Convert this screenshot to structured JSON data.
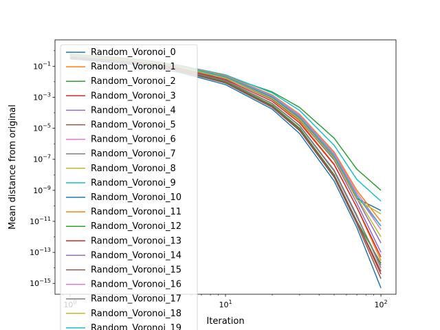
{
  "chart_data": {
    "type": "line",
    "title": "",
    "xlabel": "Iteration",
    "ylabel": "Mean distance from original",
    "xscale": "log",
    "yscale": "log",
    "xlim": [
      0.8,
      125
    ],
    "ylim": [
      2e-16,
      5
    ],
    "x_ticks": [
      {
        "base": "10",
        "exp": "0",
        "value": 1
      },
      {
        "base": "10",
        "exp": "1",
        "value": 10
      },
      {
        "base": "10",
        "exp": "2",
        "value": 100
      }
    ],
    "y_ticks": [
      {
        "base": "10",
        "exp": "−1",
        "value": 0.1
      },
      {
        "base": "10",
        "exp": "−3",
        "value": 0.001
      },
      {
        "base": "10",
        "exp": "−5",
        "value": 1e-05
      },
      {
        "base": "10",
        "exp": "−7",
        "value": 1e-07
      },
      {
        "base": "10",
        "exp": "−9",
        "value": 1e-09
      },
      {
        "base": "10",
        "exp": "−11",
        "value": 1e-11
      },
      {
        "base": "10",
        "exp": "−13",
        "value": 1e-13
      },
      {
        "base": "10",
        "exp": "−15",
        "value": 1e-15
      }
    ],
    "legend_position": "upper-left",
    "palette": [
      "#1f77b4",
      "#ff7f0e",
      "#2ca02c",
      "#d62728",
      "#9467bd",
      "#8c564b",
      "#e377c2",
      "#7f7f7f",
      "#bcbd22",
      "#17becf"
    ],
    "x": [
      1,
      2,
      3,
      5,
      10,
      20,
      30,
      50,
      70,
      100
    ],
    "series": [
      {
        "name": "Random_Voronoi_0",
        "values": [
          0.3,
          0.17,
          0.105,
          0.042,
          0.0065,
          0.00017,
          4.5e-06,
          4e-09,
          4e-12,
          5e-16
        ]
      },
      {
        "name": "Random_Voronoi_1",
        "values": [
          0.58,
          0.34,
          0.22,
          0.096,
          0.018,
          0.0007,
          2.8e-05,
          5e-08,
          8e-11,
          3e-14
        ]
      },
      {
        "name": "Random_Voronoi_2",
        "values": [
          0.45,
          0.28,
          0.19,
          0.095,
          0.024,
          0.0022,
          0.00022,
          2.3e-06,
          2.3e-08,
          1e-09
        ]
      },
      {
        "name": "Random_Voronoi_3",
        "values": [
          0.4,
          0.23,
          0.145,
          0.06,
          0.01,
          0.0003,
          1e-05,
          1e-08,
          1e-11,
          4e-15
        ]
      },
      {
        "name": "Random_Voronoi_4",
        "values": [
          0.5,
          0.3,
          0.2,
          0.09,
          0.018,
          0.0008,
          3.5e-05,
          9e-08,
          1.5e-10,
          1e-13
        ]
      },
      {
        "name": "Random_Voronoi_5",
        "values": [
          0.35,
          0.2,
          0.125,
          0.05,
          0.0082,
          0.00022,
          7e-06,
          7e-09,
          7e-12,
          2e-15
        ]
      },
      {
        "name": "Random_Voronoi_6",
        "values": [
          0.55,
          0.33,
          0.22,
          0.1,
          0.022,
          0.0012,
          6e-05,
          2e-07,
          5e-10,
          3e-12
        ]
      },
      {
        "name": "Random_Voronoi_7",
        "values": [
          0.42,
          0.25,
          0.16,
          0.068,
          0.012,
          0.0004,
          1.5e-05,
          2e-08,
          2.5e-11,
          1e-14
        ]
      },
      {
        "name": "Random_Voronoi_8",
        "values": [
          0.52,
          0.31,
          0.21,
          0.095,
          0.02,
          0.001,
          5e-05,
          1.5e-07,
          3.5e-10,
          1e-12
        ]
      },
      {
        "name": "Random_Voronoi_9",
        "values": [
          0.6,
          0.37,
          0.25,
          0.12,
          0.028,
          0.0019,
          0.00014,
          8e-07,
          5e-09,
          2e-10
        ]
      },
      {
        "name": "Random_Voronoi_10",
        "values": [
          0.48,
          0.29,
          0.19,
          0.085,
          0.017,
          0.00075,
          3.5e-05,
          1e-07,
          3e-10,
          5e-11
        ]
      },
      {
        "name": "Random_Voronoi_11",
        "values": [
          0.62,
          0.37,
          0.25,
          0.115,
          0.025,
          0.0014,
          8e-05,
          3e-07,
          1e-09,
          1e-11
        ]
      },
      {
        "name": "Random_Voronoi_12",
        "values": [
          0.38,
          0.22,
          0.14,
          0.057,
          0.0098,
          0.0003,
          1e-05,
          1e-08,
          1e-11,
          2e-14
        ]
      },
      {
        "name": "Random_Voronoi_13",
        "values": [
          0.44,
          0.26,
          0.17,
          0.074,
          0.014,
          0.00055,
          2.2e-05,
          4.5e-08,
          8e-11,
          5e-14
        ]
      },
      {
        "name": "Random_Voronoi_14",
        "values": [
          0.53,
          0.32,
          0.21,
          0.095,
          0.019,
          0.00095,
          4.5e-05,
          1.3e-07,
          3e-10,
          4e-13
        ]
      },
      {
        "name": "Random_Voronoi_15",
        "values": [
          0.36,
          0.21,
          0.13,
          0.053,
          0.009,
          0.00026,
          8.5e-06,
          9e-09,
          1e-11,
          6e-15
        ]
      },
      {
        "name": "Random_Voronoi_16",
        "values": [
          0.57,
          0.34,
          0.23,
          0.105,
          0.023,
          0.0013,
          7e-05,
          2.5e-07,
          7e-10,
          5e-12
        ]
      },
      {
        "name": "Random_Voronoi_17",
        "values": [
          0.41,
          0.24,
          0.155,
          0.065,
          0.0115,
          0.00038,
          1.4e-05,
          1.7e-08,
          2e-11,
          1.5e-14
        ]
      },
      {
        "name": "Random_Voronoi_18",
        "values": [
          0.49,
          0.29,
          0.195,
          0.088,
          0.0175,
          0.00082,
          3.8e-05,
          1.1e-07,
          2.5e-10,
          3e-11
        ]
      },
      {
        "name": "Random_Voronoi_19",
        "values": [
          0.56,
          0.34,
          0.225,
          0.102,
          0.022,
          0.0011,
          5.5e-05,
          1.8e-07,
          4.5e-10,
          5e-12
        ]
      }
    ]
  }
}
